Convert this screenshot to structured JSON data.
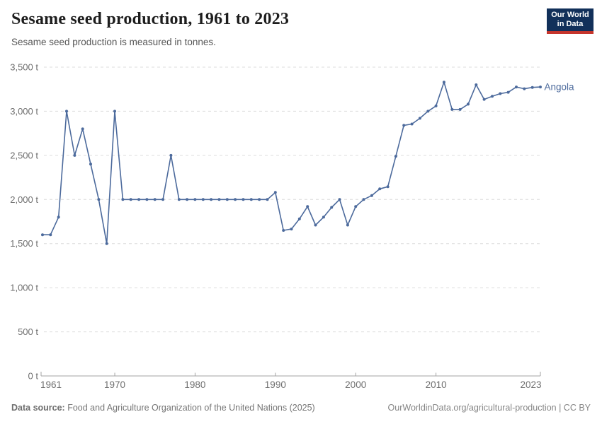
{
  "header": {
    "title": "Sesame seed production, 1961 to 2023",
    "subtitle": "Sesame seed production is measured in tonnes.",
    "logo_line1": "Our World",
    "logo_line2": "in Data"
  },
  "footer": {
    "source_label": "Data source:",
    "source_text": " Food and Agriculture Organization of the United Nations (2025)",
    "credit_text": "OurWorldinData.org/agricultural-production | CC BY"
  },
  "colors": {
    "line": "#4C6A9C",
    "grid": "#dcdcdc",
    "axis": "#a3a3a3",
    "tick_label": "#6e6e6e",
    "logo_bg": "#12305a",
    "logo_stripe": "#c5352c"
  },
  "chart_data": {
    "type": "line",
    "title": "Sesame seed production, 1961 to 2023",
    "ylabel": "",
    "xlabel": "",
    "unit": "t",
    "ylim": [
      0,
      3500
    ],
    "xlim": [
      1961,
      2023
    ],
    "y_ticks": [
      0,
      500,
      1000,
      1500,
      2000,
      2500,
      3000,
      3500
    ],
    "x_ticks": [
      1961,
      1970,
      1980,
      1990,
      2000,
      2010,
      2023
    ],
    "grid": "horizontal-dashed",
    "legend_position": "end-of-line-label",
    "end_label": "Angola",
    "series": [
      {
        "name": "Angola",
        "x": [
          1961,
          1962,
          1963,
          1964,
          1965,
          1966,
          1967,
          1968,
          1969,
          1970,
          1971,
          1972,
          1973,
          1974,
          1975,
          1976,
          1977,
          1978,
          1979,
          1980,
          1981,
          1982,
          1983,
          1984,
          1985,
          1986,
          1987,
          1988,
          1989,
          1990,
          1991,
          1992,
          1993,
          1994,
          1995,
          1996,
          1997,
          1998,
          1999,
          2000,
          2001,
          2002,
          2003,
          2004,
          2005,
          2006,
          2007,
          2008,
          2009,
          2010,
          2011,
          2012,
          2013,
          2014,
          2015,
          2016,
          2017,
          2018,
          2019,
          2020,
          2021,
          2022,
          2023
        ],
        "values": [
          1600,
          1600,
          1800,
          3000,
          2500,
          2800,
          2400,
          2000,
          1500,
          3000,
          2000,
          2000,
          2000,
          2000,
          2000,
          2000,
          2500,
          2000,
          2000,
          2000,
          2000,
          2000,
          2000,
          2000,
          2000,
          2000,
          2000,
          2000,
          2000,
          2080,
          1650,
          1665,
          1780,
          1920,
          1710,
          1800,
          1910,
          2000,
          1710,
          1920,
          2000,
          2045,
          2120,
          2145,
          2490,
          2840,
          2855,
          2920,
          3000,
          3060,
          3330,
          3020,
          3020,
          3080,
          3300,
          3135,
          3170,
          3200,
          3215,
          3275,
          3255,
          3270,
          3275
        ]
      }
    ]
  }
}
